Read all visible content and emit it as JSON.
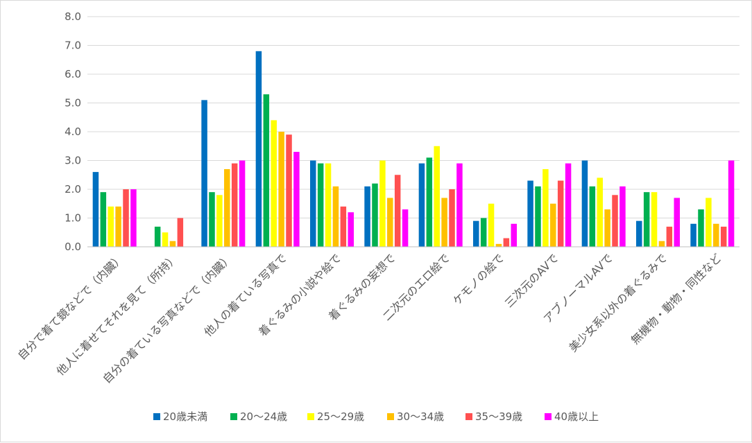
{
  "chart_data": {
    "type": "bar",
    "categories": [
      "自分で着て鏡などで（内臓）",
      "他人に着せてそれを見て（所持）",
      "自分の着ている写真などで（内臓）",
      "他人の着ている写真で",
      "着ぐるみの小説や絵で",
      "着ぐるみの妄想で",
      "二次元のエロ絵で",
      "ケモノの絵で",
      "三次元のAVで",
      "アブノーマルAVで",
      "美少女系以外の着ぐるみで",
      "無機物・動物・同性など"
    ],
    "series": [
      {
        "name": "20歳未満",
        "color": "#0070c0",
        "values": [
          2.6,
          0.0,
          5.1,
          6.8,
          3.0,
          2.1,
          2.9,
          0.9,
          2.3,
          3.0,
          0.9,
          0.8
        ]
      },
      {
        "name": "20～24歳",
        "color": "#00b050",
        "values": [
          1.9,
          0.7,
          1.9,
          5.3,
          2.9,
          2.2,
          3.1,
          1.0,
          2.1,
          2.1,
          1.9,
          1.3
        ]
      },
      {
        "name": "25～29歳",
        "color": "#ffff00",
        "values": [
          1.4,
          0.5,
          1.8,
          4.4,
          2.9,
          3.0,
          3.5,
          1.5,
          2.7,
          2.4,
          1.9,
          1.7
        ]
      },
      {
        "name": "30～34歳",
        "color": "#ffc000",
        "values": [
          1.4,
          0.2,
          2.7,
          4.0,
          2.1,
          1.7,
          1.7,
          0.1,
          1.5,
          1.3,
          0.2,
          0.8
        ]
      },
      {
        "name": "35～39歳",
        "color": "#ff5050",
        "values": [
          2.0,
          1.0,
          2.9,
          3.9,
          1.4,
          2.5,
          2.0,
          0.3,
          2.3,
          1.8,
          0.7,
          0.7
        ]
      },
      {
        "name": "40歳以上",
        "color": "#ff00ff",
        "values": [
          2.0,
          0.0,
          3.0,
          3.3,
          1.2,
          1.3,
          2.9,
          0.8,
          2.9,
          2.1,
          1.7,
          3.0
        ]
      }
    ],
    "y_ticks": [
      "0.0",
      "1.0",
      "2.0",
      "3.0",
      "4.0",
      "5.0",
      "6.0",
      "7.0",
      "8.0"
    ],
    "ylim": [
      0,
      8
    ],
    "grid": true,
    "legend_position": "bottom"
  }
}
